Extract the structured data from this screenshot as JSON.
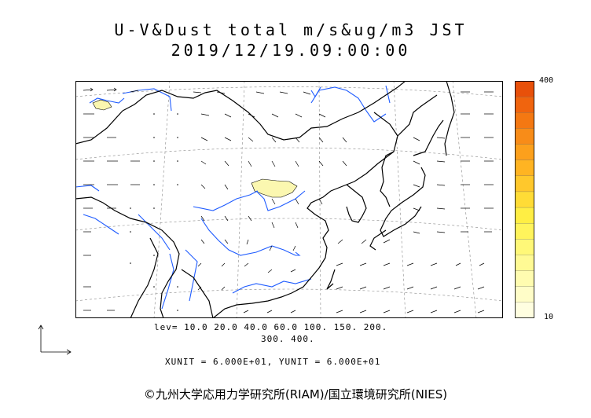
{
  "title_line1": "U-V&Dust total m/s&ug/m3 JST",
  "title_line2": "2019/12/19.09:00:00",
  "legend": {
    "max_label": "400",
    "min_label": "10",
    "colors": [
      "#e8500a",
      "#f0640e",
      "#f47812",
      "#f88c18",
      "#fca01c",
      "#ffb422",
      "#ffc82c",
      "#ffdc36",
      "#ffee44",
      "#fff45c",
      "#fff878",
      "#fffa94",
      "#fffcb0",
      "#fffdc8",
      "#fffee0"
    ]
  },
  "levels_line1": "lev= 10.0 20.0 40.0 60.0 100. 150. 200.",
  "levels_line2": "300. 400.",
  "units": "XUNIT = 6.000E+01, YUNIT = 6.000E+01",
  "copyright": "©九州大学応用力学研究所(RIAM)/国立環境研究所(NIES)",
  "map_style": {
    "coastline_color": "#000000",
    "river_color": "#1e5bff",
    "dust_fill": "#fbf7b0",
    "grid_style": "dashed"
  }
}
